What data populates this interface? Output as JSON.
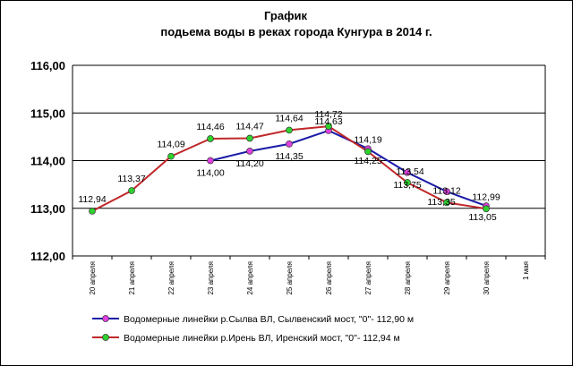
{
  "chart_data": {
    "type": "line",
    "title_lines": [
      "График",
      "подьема воды в реках города Кунгура  в 2014 г."
    ],
    "categories": [
      "20 апреля",
      "21 апреля",
      "22 апреля",
      "23 апреля",
      "24 апреля",
      "25 апреля",
      "26 апреля",
      "27 апреля",
      "28 апреля",
      "29 апреля",
      "30 апреля",
      "1 мая"
    ],
    "ylim": [
      112,
      116
    ],
    "yticks": [
      "112,00",
      "113,00",
      "114,00",
      "115,00",
      "116,00"
    ],
    "grid": true,
    "legend_position": "bottom",
    "series": [
      {
        "name": "Водомерные линейки р.Сылва ВЛ, Сылвенский мост, \"0\"- 112,90 м",
        "line_color": "#1a1aa8",
        "marker_color": "#e040e0",
        "values": [
          null,
          null,
          null,
          114.0,
          114.2,
          114.35,
          114.63,
          114.25,
          113.75,
          113.35,
          113.05,
          null
        ],
        "labels": [
          null,
          null,
          null,
          "114,00",
          "114,20",
          "114,35",
          "114,63",
          "114,25",
          "113,75",
          "113,35",
          "113,05",
          null
        ]
      },
      {
        "name": "Водомерные линейки р.Ирень ВЛ, Иренский мост, \"0\"- 112,94 м",
        "line_color": "#c0282a",
        "marker_color": "#2ed12e",
        "values": [
          112.94,
          113.37,
          114.09,
          114.46,
          114.47,
          114.64,
          114.72,
          114.19,
          113.54,
          113.12,
          112.99,
          null
        ],
        "labels": [
          "112,94",
          "113,37",
          "114,09",
          "114,46",
          "114,47",
          "114,64",
          "114,72",
          "114,19",
          "113,54",
          "113,12",
          "112,99",
          null
        ]
      }
    ]
  }
}
